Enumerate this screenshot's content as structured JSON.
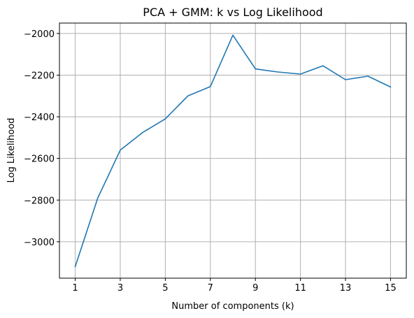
{
  "chart_data": {
    "type": "line",
    "title": "PCA + GMM: k vs Log Likelihood",
    "xlabel": "Number of components (k)",
    "ylabel": "Log Likelihood",
    "x": [
      1,
      2,
      3,
      4,
      5,
      6,
      7,
      8,
      9,
      10,
      11,
      12,
      13,
      14,
      15
    ],
    "series": [
      {
        "values": [
          -3120,
          -2790,
          -2560,
          -2475,
          -2410,
          -2300,
          -2255,
          -2008,
          -2170,
          -2185,
          -2195,
          -2155,
          -2222,
          -2205,
          -2257
        ]
      }
    ],
    "xticks": [
      1,
      3,
      5,
      7,
      9,
      11,
      13,
      15
    ],
    "yticks": [
      -3000,
      -2800,
      -2600,
      -2400,
      -2200,
      -2000
    ],
    "xtick_labels": [
      "1",
      "3",
      "5",
      "7",
      "9",
      "11",
      "13",
      "15"
    ],
    "ytick_labels": [
      "−3000",
      "−2800",
      "−2600",
      "−2400",
      "−2200",
      "−2000"
    ],
    "xlim": [
      0.3,
      15.7
    ],
    "ylim": [
      -3175,
      -1950
    ],
    "grid": true,
    "line_color": "#1f77b4"
  }
}
